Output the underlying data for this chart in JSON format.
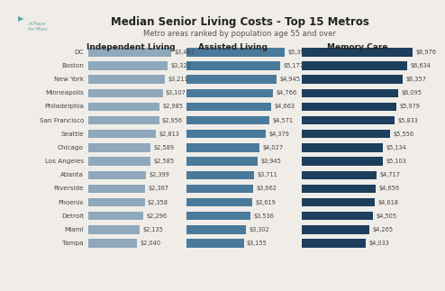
{
  "title": "Median Senior Living Costs - Top 15 Metros",
  "subtitle": "Metro areas ranked by population age 55 and over",
  "cities": [
    "DC",
    "Boston",
    "New York",
    "Minneapolis",
    "Philadelphia",
    "San Francisco",
    "Seattle",
    "Chicago",
    "Los Angeles",
    "Atlanta",
    "Riverside",
    "Phoenix",
    "Detroit",
    "Miami",
    "Tampa"
  ],
  "independent_living": [
    3462,
    3323,
    3211,
    3107,
    2985,
    2956,
    2813,
    2589,
    2585,
    2399,
    2367,
    2358,
    2296,
    2135,
    2040
  ],
  "assisted_living": [
    5391,
    5177,
    4945,
    4766,
    4663,
    4571,
    4379,
    4027,
    3945,
    3711,
    3662,
    3619,
    3536,
    3302,
    3155
  ],
  "memory_care": [
    6976,
    6634,
    6357,
    6095,
    5979,
    5833,
    5556,
    5134,
    5103,
    4717,
    4656,
    4618,
    4505,
    4265,
    4033
  ],
  "color_independent": "#8fa8bc",
  "color_assisted": "#4a7a9b",
  "color_memory": "#1c3f5e",
  "col_headers": [
    "Independent Living",
    "Assisted Living",
    "Memory Care"
  ],
  "background_color": "#f0ede8",
  "label_color": "#444444",
  "title_color": "#222222"
}
